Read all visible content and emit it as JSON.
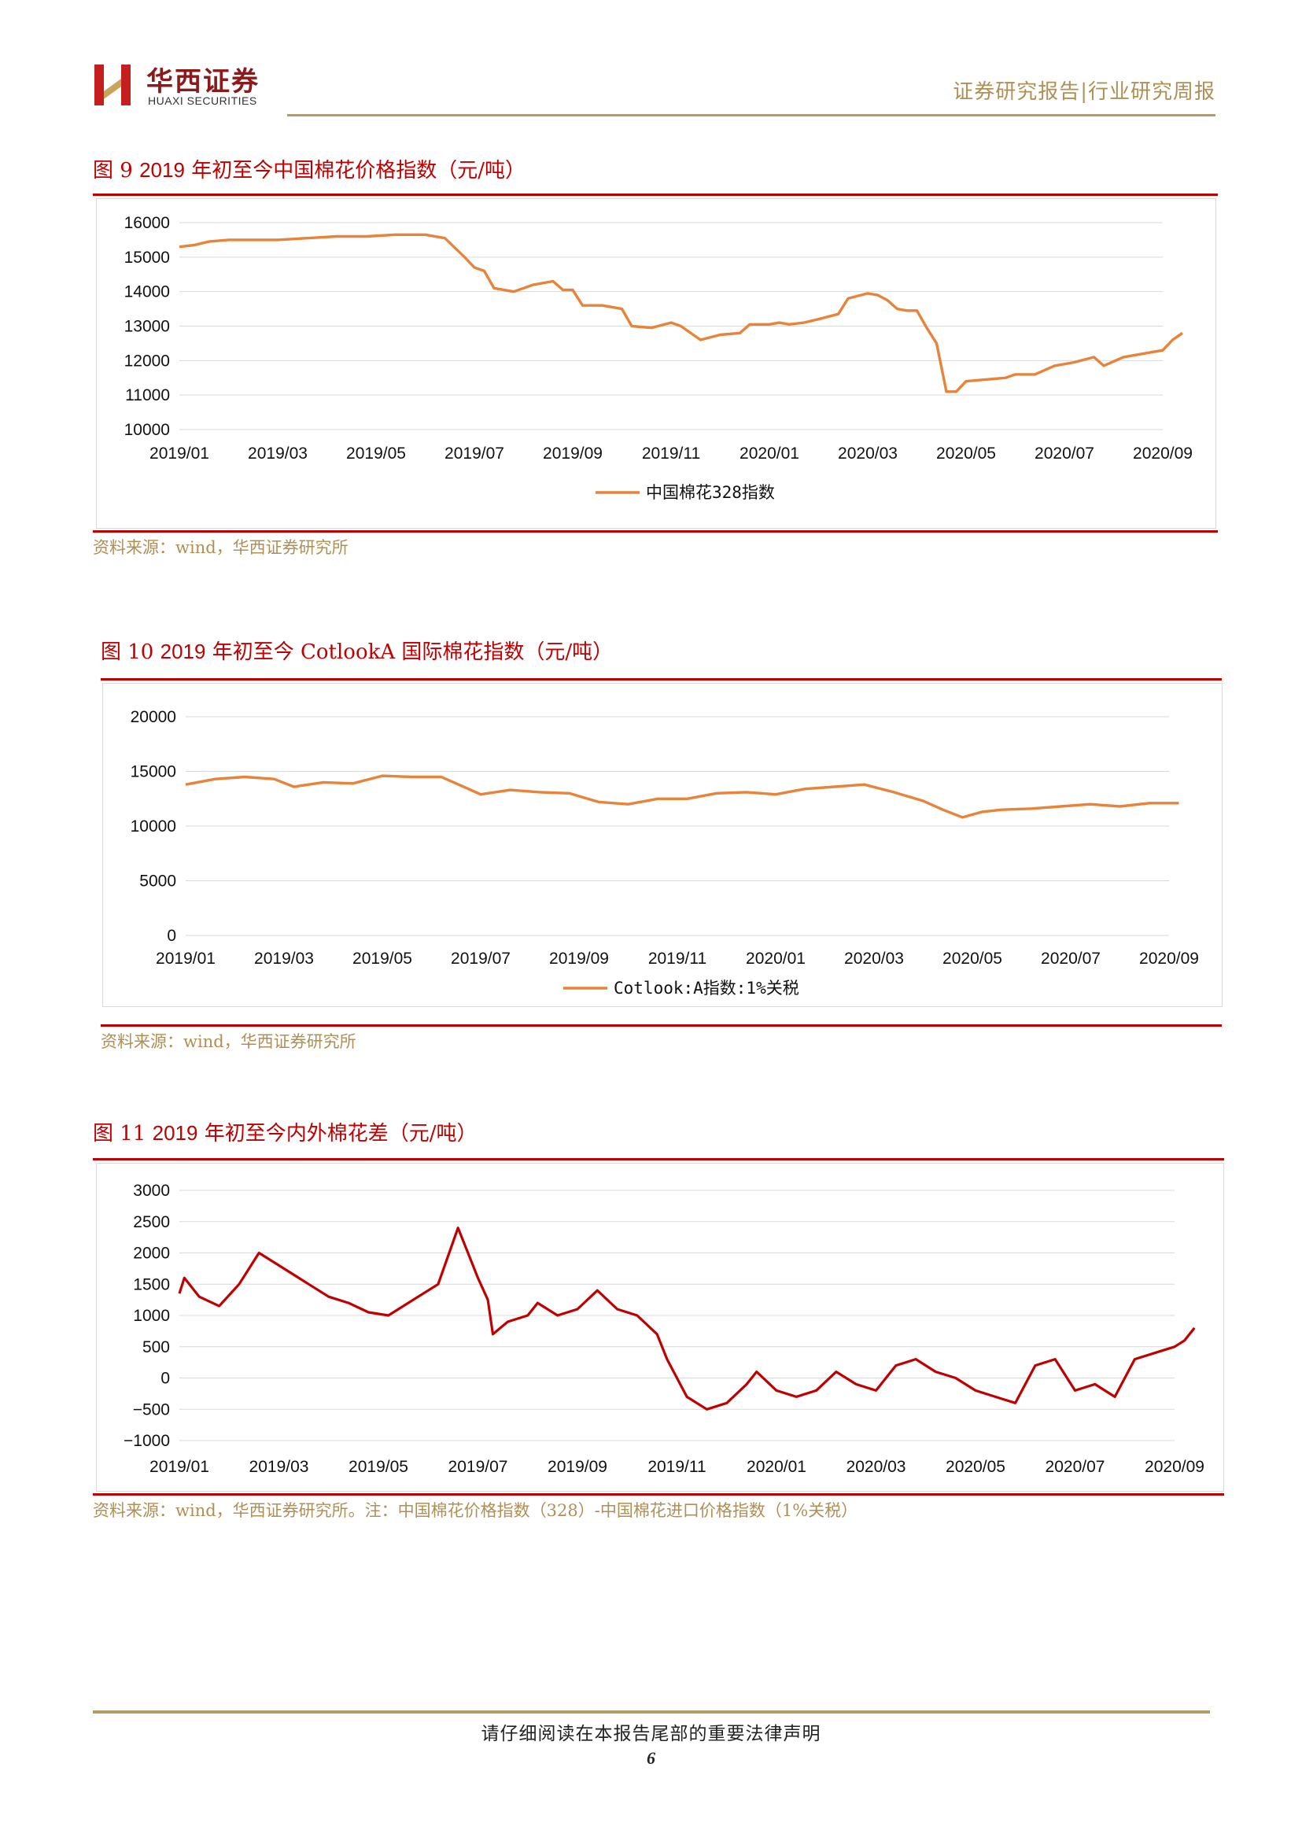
{
  "header": {
    "logo_cn": "华西证券",
    "logo_en": "HUAXI SECURITIES",
    "report_type": "证券研究报告|行业研究周报"
  },
  "figures": [
    {
      "label": "图 9",
      "title_num": "2019",
      "title_text": "年初至今中国棉花价格指数（元/吨）",
      "source": "资料来源：wind，华西证券研究所"
    },
    {
      "label": "图 10",
      "title_num": "2019",
      "title_text": "年初至今 CotlookA 国际棉花指数（元/吨）",
      "source": "资料来源：wind，华西证券研究所"
    },
    {
      "label": "图 11",
      "title_num": "2019",
      "title_text": "年初至今内外棉花差（元/吨）",
      "source": "资料来源：wind，华西证券研究所。注：中国棉花价格指数（328）-中国棉花进口价格指数（1%关税）"
    }
  ],
  "footer": {
    "disclaimer": "请仔细阅读在本报告尾部的重要法律声明",
    "page": "6"
  },
  "chart_data": [
    {
      "type": "line",
      "title": "2019年初至今中国棉花价格指数（元/吨）",
      "x_ticks": [
        "2019/01",
        "2019/03",
        "2019/05",
        "2019/07",
        "2019/09",
        "2019/11",
        "2020/01",
        "2020/03",
        "2020/05",
        "2020/07",
        "2020/09"
      ],
      "ylim": [
        10000,
        16000
      ],
      "y_ticks": [
        10000,
        11000,
        12000,
        13000,
        14000,
        15000,
        16000
      ],
      "grid": true,
      "legend": "bottom",
      "color": "#e8833a",
      "series": [
        {
          "name": "中国棉花328指数",
          "x": [
            0,
            0.15,
            0.3,
            0.5,
            0.8,
            1.0,
            1.3,
            1.6,
            1.9,
            2.2,
            2.5,
            2.7,
            2.9,
            3.0,
            3.1,
            3.2,
            3.4,
            3.6,
            3.8,
            3.9,
            4.0,
            4.1,
            4.3,
            4.5,
            4.6,
            4.8,
            5.0,
            5.1,
            5.3,
            5.5,
            5.7,
            5.8,
            6.0,
            6.1,
            6.2,
            6.35,
            6.5,
            6.7,
            6.8,
            7.0,
            7.1,
            7.2,
            7.3,
            7.4,
            7.5,
            7.6,
            7.7,
            7.8,
            7.9,
            8.0,
            8.2,
            8.4,
            8.5,
            8.7,
            8.9,
            9.1,
            9.3,
            9.4,
            9.6,
            9.8,
            10.0,
            10.1,
            10.2
          ],
          "values": [
            15300,
            15350,
            15450,
            15500,
            15500,
            15500,
            15550,
            15600,
            15600,
            15650,
            15650,
            15550,
            15000,
            14700,
            14600,
            14100,
            14000,
            14200,
            14300,
            14050,
            14050,
            13600,
            13600,
            13500,
            13000,
            12950,
            13100,
            13000,
            12600,
            12750,
            12800,
            13050,
            13050,
            13100,
            13050,
            13100,
            13200,
            13350,
            13800,
            13950,
            13900,
            13750,
            13500,
            13450,
            13450,
            12950,
            12500,
            11100,
            11100,
            11400,
            11450,
            11500,
            11600,
            11600,
            11850,
            11950,
            12100,
            11850,
            12100,
            12200,
            12300,
            12600,
            12800
          ]
        }
      ]
    },
    {
      "type": "line",
      "title": "2019年初至今 CotlookA 国际棉花指数（元/吨）",
      "x_ticks": [
        "2019/01",
        "2019/03",
        "2019/05",
        "2019/07",
        "2019/09",
        "2019/11",
        "2020/01",
        "2020/03",
        "2020/05",
        "2020/07",
        "2020/09"
      ],
      "ylim": [
        0,
        20000
      ],
      "y_ticks": [
        0,
        5000,
        10000,
        15000,
        20000
      ],
      "grid": true,
      "legend": "bottom",
      "color": "#e8833a",
      "series": [
        {
          "name": "Cotlook:A指数:1%关税",
          "x": [
            0,
            0.3,
            0.6,
            0.9,
            1.1,
            1.4,
            1.7,
            2.0,
            2.3,
            2.6,
            2.8,
            3.0,
            3.3,
            3.6,
            3.9,
            4.2,
            4.5,
            4.8,
            5.1,
            5.4,
            5.7,
            6.0,
            6.3,
            6.6,
            6.9,
            7.2,
            7.5,
            7.7,
            7.9,
            8.1,
            8.3,
            8.6,
            8.9,
            9.2,
            9.5,
            9.8,
            10.1
          ],
          "values": [
            13800,
            14300,
            14500,
            14300,
            13600,
            14000,
            13900,
            14600,
            14500,
            14500,
            13700,
            12900,
            13300,
            13100,
            13000,
            12200,
            12000,
            12500,
            12500,
            13000,
            13100,
            12900,
            13400,
            13600,
            13800,
            13100,
            12300,
            11500,
            10800,
            11300,
            11500,
            11600,
            11800,
            12000,
            11800,
            12100,
            12100
          ]
        }
      ]
    },
    {
      "type": "line",
      "title": "2019年初至今内外棉花差（元/吨）",
      "x_ticks": [
        "2019/01",
        "2019/03",
        "2019/05",
        "2019/07",
        "2019/09",
        "2019/11",
        "2020/01",
        "2020/03",
        "2020/05",
        "2020/07",
        "2020/09"
      ],
      "ylim": [
        -1000,
        3000
      ],
      "y_ticks": [
        -1000,
        -500,
        0,
        500,
        1000,
        1500,
        2000,
        2500,
        3000
      ],
      "grid": true,
      "color": "#c00000",
      "series": [
        {
          "name": "",
          "x": [
            0,
            0.05,
            0.2,
            0.4,
            0.6,
            0.8,
            1.0,
            1.3,
            1.5,
            1.7,
            1.9,
            2.1,
            2.3,
            2.6,
            2.8,
            3.0,
            3.1,
            3.15,
            3.3,
            3.5,
            3.6,
            3.8,
            4.0,
            4.2,
            4.4,
            4.6,
            4.8,
            4.9,
            5.1,
            5.3,
            5.5,
            5.7,
            5.8,
            6.0,
            6.2,
            6.4,
            6.6,
            6.8,
            7.0,
            7.2,
            7.4,
            7.6,
            7.8,
            8.0,
            8.2,
            8.4,
            8.6,
            8.8,
            9.0,
            9.2,
            9.4,
            9.6,
            9.8,
            10.0,
            10.1,
            10.2
          ],
          "values": [
            1350,
            1600,
            1300,
            1150,
            1500,
            2000,
            1800,
            1500,
            1300,
            1200,
            1050,
            1000,
            1200,
            1500,
            2400,
            1600,
            1250,
            700,
            900,
            1000,
            1200,
            1000,
            1100,
            1400,
            1100,
            1000,
            700,
            300,
            -300,
            -500,
            -400,
            -100,
            100,
            -200,
            -300,
            -200,
            100,
            -100,
            -200,
            200,
            300,
            100,
            0,
            -200,
            -300,
            -400,
            200,
            300,
            -200,
            -100,
            -300,
            300,
            400,
            500,
            600,
            800
          ]
        }
      ]
    }
  ]
}
